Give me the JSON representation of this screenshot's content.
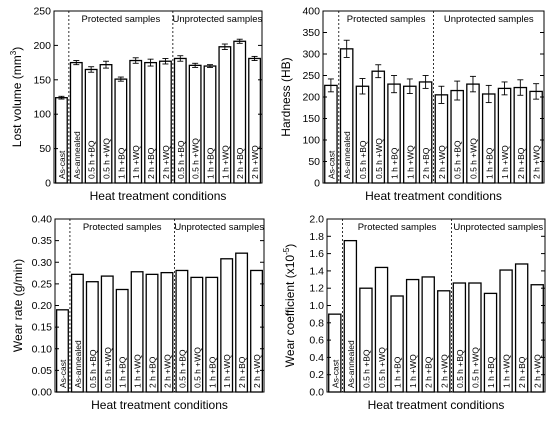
{
  "chart_data": [
    {
      "type": "bar",
      "panel": "top-left",
      "xlabel": "Heat treatment conditions",
      "ylabel": "Lost volume (mm",
      "ylabel_sup": "3",
      "ylabel_tail": ")",
      "ylim": [
        0,
        250
      ],
      "yticks": [
        0,
        50,
        100,
        150,
        200,
        250
      ],
      "ytick_labels": [
        "0",
        "50",
        "100",
        "150",
        "200",
        "250"
      ],
      "error_bars": true,
      "categories": [
        "As-cast",
        "As-annealed",
        "0.5 h +BQ",
        "0.5 h +WQ",
        "1 h +BQ",
        "1 h +WQ",
        "2 h +BQ",
        "2 h +WQ",
        "0.5 h +BQ",
        "0.5 h +WQ",
        "1 h +BQ",
        "1 h +WQ",
        "2 h +BQ",
        "2 h +WQ"
      ],
      "values": [
        124,
        175,
        165,
        172,
        151,
        178,
        175,
        177,
        181,
        171,
        170,
        198,
        206,
        181
      ],
      "errors": [
        2,
        3,
        4,
        5,
        3,
        4,
        5,
        4,
        4,
        3,
        2,
        4,
        3,
        3
      ],
      "regions": [
        {
          "label": "Protected samples",
          "start_index": 1,
          "end_index": 7
        },
        {
          "label": "Unprotected samples",
          "start_index": 8,
          "end_index": 13
        }
      ]
    },
    {
      "type": "bar",
      "panel": "top-right",
      "xlabel": "Heat treatment conditions",
      "ylabel": "Hardness (HB)",
      "ylim": [
        0,
        400
      ],
      "yticks": [
        0,
        50,
        100,
        150,
        200,
        250,
        300,
        350,
        400
      ],
      "ytick_labels": [
        "0",
        "50",
        "100",
        "150",
        "200",
        "250",
        "300",
        "350",
        "400"
      ],
      "error_bars": true,
      "categories": [
        "As-cast",
        "As-annealed",
        "0.5 h +BQ",
        "0.5 h +WQ",
        "1 h +BQ",
        "1 h +WQ",
        "2 h +BQ",
        "2 h +WQ",
        "0.5 h +BQ",
        "0.5 h +WQ",
        "1 h +BQ",
        "1 h +WQ",
        "2 h +BQ",
        "2 h +WQ"
      ],
      "values": [
        227,
        312,
        225,
        260,
        230,
        225,
        235,
        205,
        215,
        230,
        207,
        220,
        222,
        213
      ],
      "errors": [
        15,
        20,
        18,
        15,
        20,
        17,
        15,
        20,
        22,
        18,
        20,
        15,
        18,
        18
      ],
      "regions": [
        {
          "label": "Protected samples",
          "start_index": 1,
          "end_index": 6
        },
        {
          "label": "Unprotected samples",
          "start_index": 7,
          "end_index": 13
        }
      ]
    },
    {
      "type": "bar",
      "panel": "bottom-left",
      "xlabel": "Heat treatment conditions",
      "ylabel": "Wear rate (g/min)",
      "ylim": [
        0,
        0.4
      ],
      "yticks": [
        0,
        0.05,
        0.1,
        0.15,
        0.2,
        0.25,
        0.3,
        0.35,
        0.4
      ],
      "ytick_labels": [
        "0.00",
        "0.05",
        "0.10",
        "0.15",
        "0.20",
        "0.25",
        "0.30",
        "0.35",
        "0.40"
      ],
      "error_bars": false,
      "categories": [
        "As-cast",
        "As-annealed",
        "0.5 h +BQ",
        "0.5 h +WQ",
        "1 h +BQ",
        "1 h +WQ",
        "2 h +BQ",
        "2 h +WQ",
        "0.5 h +BQ",
        "0.5 h +WQ",
        "1 h +BQ",
        "1 h +WQ",
        "2 h +BQ",
        "2 h +WQ"
      ],
      "values": [
        0.19,
        0.272,
        0.255,
        0.268,
        0.237,
        0.278,
        0.272,
        0.276,
        0.281,
        0.265,
        0.265,
        0.308,
        0.321,
        0.281
      ],
      "regions": [
        {
          "label": "Protected samples",
          "start_index": 1,
          "end_index": 7
        },
        {
          "label": "Unprotected samples",
          "start_index": 8,
          "end_index": 13
        }
      ]
    },
    {
      "type": "bar",
      "panel": "bottom-right",
      "xlabel": "Heat treatment conditions",
      "ylabel": "Wear coefficient (x10",
      "ylabel_sup": "-5",
      "ylabel_tail": ")",
      "ylim": [
        0,
        2.0
      ],
      "yticks": [
        0,
        0.2,
        0.4,
        0.6,
        0.8,
        1.0,
        1.2,
        1.4,
        1.6,
        1.8,
        2.0
      ],
      "ytick_labels": [
        "0.0",
        "0.2",
        "0.4",
        "0.6",
        "0.8",
        "1.0",
        "1.2",
        "1.4",
        "1.6",
        "1.8",
        "2.0"
      ],
      "error_bars": false,
      "categories": [
        "As-cast",
        "As-annealed",
        "0.5 h +BQ",
        "0.5 h +WQ",
        "1 h +BQ",
        "1 h +WQ",
        "2 h +BQ",
        "2 h +WQ",
        "0.5 h +BQ",
        "0.5 h +WQ",
        "1 h +BQ",
        "1 h +WQ",
        "2 h +BQ",
        "2 h +WQ"
      ],
      "values": [
        0.9,
        1.75,
        1.2,
        1.44,
        1.11,
        1.3,
        1.33,
        1.17,
        1.26,
        1.26,
        1.14,
        1.41,
        1.48,
        1.24
      ],
      "regions": [
        {
          "label": "Protected samples",
          "start_index": 1,
          "end_index": 7
        },
        {
          "label": "Unprotected samples",
          "start_index": 8,
          "end_index": 13
        }
      ]
    }
  ]
}
